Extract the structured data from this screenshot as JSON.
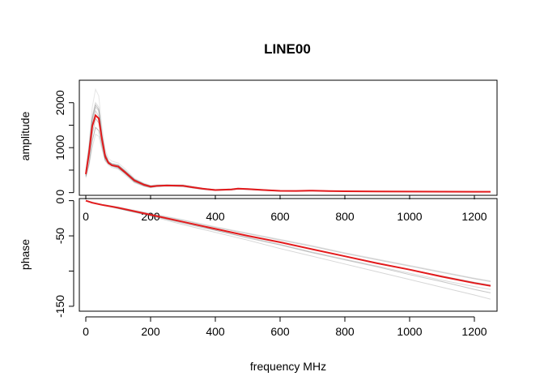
{
  "chart_data": [
    {
      "type": "line",
      "title": "LINE00",
      "xlabel": "",
      "ylabel": "amplitude",
      "xlim": [
        -20,
        1270
      ],
      "ylim": [
        -60,
        2500
      ],
      "x_ticks": [
        "0",
        "200",
        "400",
        "600",
        "800",
        "1000",
        "1200"
      ],
      "y_ticks": [
        "0",
        "1000",
        "2000"
      ],
      "ensemble": {
        "color": "#333333",
        "x": [
          0,
          10,
          20,
          30,
          40,
          50,
          60,
          70,
          80,
          100,
          120,
          150,
          180,
          200,
          220,
          250,
          300,
          330,
          360,
          400,
          450,
          470,
          500,
          550,
          600,
          650,
          700,
          750,
          800,
          900,
          1000,
          1100,
          1200,
          1250
        ],
        "curves": [
          [
            420,
            900,
            1500,
            1820,
            1700,
            1200,
            820,
            660,
            610,
            580,
            470,
            280,
            180,
            140,
            150,
            160,
            155,
            120,
            90,
            60,
            70,
            90,
            80,
            60,
            40,
            38,
            45,
            36,
            30,
            26,
            24,
            22,
            20,
            20
          ],
          [
            360,
            650,
            1150,
            1450,
            1380,
            1030,
            720,
            640,
            600,
            560,
            430,
            240,
            150,
            115,
            140,
            150,
            140,
            105,
            75,
            50,
            60,
            80,
            70,
            50,
            35,
            32,
            40,
            32,
            28,
            24,
            22,
            20,
            18,
            18
          ],
          [
            470,
            1000,
            1700,
            2000,
            1900,
            1300,
            880,
            700,
            650,
            620,
            500,
            300,
            195,
            150,
            165,
            170,
            165,
            130,
            95,
            66,
            80,
            95,
            85,
            64,
            42,
            40,
            48,
            38,
            32,
            28,
            25,
            23,
            21,
            20
          ],
          [
            380,
            780,
            1300,
            1650,
            1550,
            1120,
            760,
            650,
            590,
            540,
            440,
            250,
            165,
            125,
            140,
            155,
            150,
            115,
            85,
            55,
            65,
            85,
            75,
            55,
            38,
            35,
            44,
            34,
            29,
            25,
            23,
            21,
            19,
            19
          ],
          [
            440,
            950,
            1600,
            1900,
            1820,
            1260,
            840,
            680,
            630,
            600,
            480,
            290,
            185,
            145,
            155,
            165,
            160,
            125,
            92,
            62,
            72,
            92,
            82,
            62,
            41,
            39,
            46,
            37,
            31,
            27,
            24,
            22,
            20,
            20
          ],
          [
            500,
            1100,
            1900,
            2300,
            2150,
            1450,
            950,
            760,
            700,
            660,
            540,
            320,
            210,
            160,
            175,
            180,
            175,
            140,
            100,
            70,
            85,
            100,
            90,
            68,
            45,
            42,
            50,
            40,
            34,
            30,
            26,
            24,
            22,
            22
          ],
          [
            330,
            600,
            1000,
            1300,
            1250,
            960,
            700,
            610,
            560,
            520,
            400,
            220,
            140,
            105,
            130,
            140,
            130,
            100,
            70,
            48,
            58,
            75,
            65,
            48,
            33,
            30,
            38,
            30,
            26,
            22,
            20,
            19,
            17,
            17
          ],
          [
            460,
            980,
            1650,
            1950,
            1850,
            1280,
            860,
            690,
            640,
            610,
            490,
            295,
            190,
            148,
            160,
            168,
            162,
            128,
            94,
            64,
            75,
            93,
            83,
            63,
            41,
            39,
            47,
            37,
            31,
            27,
            24,
            22,
            20,
            20
          ]
        ]
      },
      "mean": {
        "color": "#e31a1c",
        "x": [
          0,
          10,
          20,
          30,
          40,
          50,
          60,
          70,
          80,
          100,
          120,
          150,
          180,
          200,
          220,
          250,
          300,
          330,
          360,
          400,
          450,
          470,
          500,
          550,
          600,
          650,
          700,
          750,
          800,
          900,
          1000,
          1100,
          1200,
          1250
        ],
        "y": [
          410,
          880,
          1480,
          1720,
          1650,
          1180,
          800,
          660,
          610,
          580,
          460,
          270,
          175,
          135,
          150,
          158,
          152,
          118,
          88,
          58,
          70,
          88,
          78,
          58,
          39,
          37,
          44,
          35,
          30,
          26,
          23,
          21,
          19,
          19
        ]
      }
    },
    {
      "type": "line",
      "title": "",
      "xlabel": "frequency MHz",
      "ylabel": "phase",
      "xlim": [
        -20,
        1270
      ],
      "ylim": [
        -157,
        3
      ],
      "x_ticks": [
        "0",
        "200",
        "400",
        "600",
        "800",
        "1000",
        "1200"
      ],
      "y_ticks": [
        "0",
        "-50",
        "-150"
      ],
      "ensemble": {
        "color": "#333333",
        "x": [
          0,
          20,
          50,
          100,
          200,
          300,
          400,
          500,
          600,
          700,
          800,
          900,
          1000,
          1100,
          1200,
          1250
        ],
        "curves": [
          [
            0,
            -3,
            -6,
            -10,
            -19,
            -28,
            -38,
            -47,
            -56,
            -65,
            -75,
            -84,
            -93,
            -102,
            -111,
            -115
          ],
          [
            0,
            -3,
            -6,
            -10,
            -20,
            -30,
            -40,
            -50,
            -59,
            -69,
            -79,
            -89,
            -98,
            -107,
            -116,
            -120
          ],
          [
            0,
            -3,
            -6,
            -11,
            -21,
            -31,
            -42,
            -52,
            -62,
            -73,
            -83,
            -93,
            -103,
            -113,
            -122,
            -126
          ],
          [
            0,
            -3,
            -6,
            -11,
            -21,
            -32,
            -42,
            -53,
            -63,
            -74,
            -84,
            -94,
            -105,
            -115,
            -126,
            -131
          ],
          [
            0,
            -3,
            -6,
            -11,
            -22,
            -34,
            -45,
            -56,
            -68,
            -79,
            -90,
            -101,
            -112,
            -123,
            -134,
            -140
          ],
          [
            0,
            -3,
            -6,
            -10,
            -20,
            -30,
            -40,
            -49,
            -59,
            -69,
            -79,
            -88,
            -98,
            -108,
            -117,
            -122
          ],
          [
            0,
            -2,
            -5,
            -9,
            -18,
            -27,
            -37,
            -46,
            -55,
            -64,
            -74,
            -83,
            -92,
            -101,
            -110,
            -114
          ]
        ]
      },
      "mean": {
        "color": "#e31a1c",
        "x": [
          0,
          20,
          50,
          100,
          200,
          300,
          400,
          500,
          600,
          700,
          800,
          900,
          1000,
          1100,
          1200,
          1250
        ],
        "y": [
          0,
          -3,
          -6,
          -10,
          -20,
          -30,
          -40,
          -50,
          -59,
          -69,
          -79,
          -89,
          -98,
          -108,
          -117,
          -121
        ]
      }
    }
  ]
}
